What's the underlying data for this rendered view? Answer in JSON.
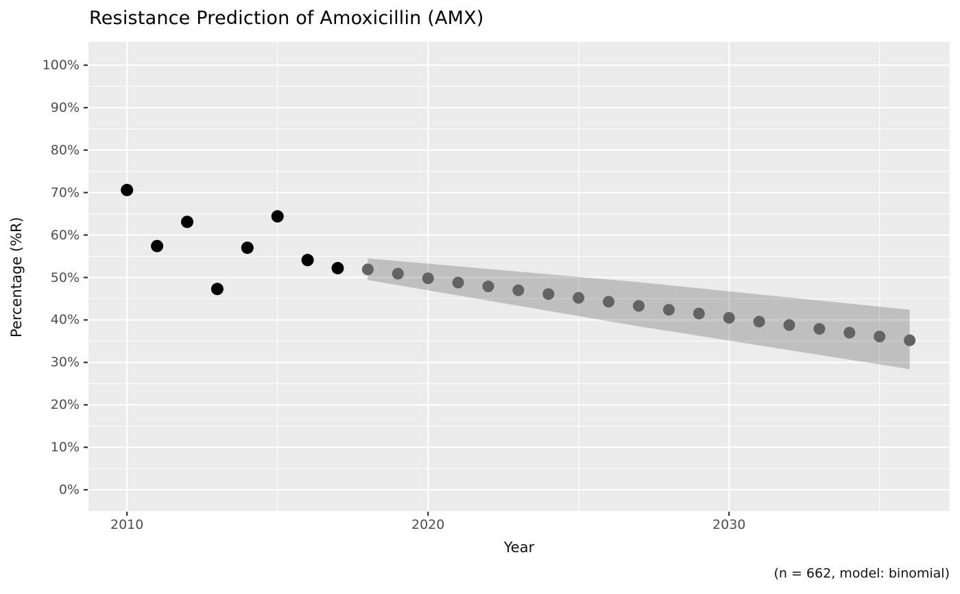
{
  "title": "Resistance Prediction of Amoxicillin (AMX)",
  "caption": "(n = 662, model: binomial)",
  "colors": {
    "panel_background": "#ebebeb",
    "grid_major": "#ffffff",
    "grid_minor": "#ffffff",
    "axis_tick": "#333333",
    "tick_label": "#4d4d4d",
    "observed_point": "#000000",
    "predicted_point": "#636363",
    "ribbon_fill": "rgba(50,50,50,0.235)"
  },
  "chart_data": {
    "type": "scatter",
    "title": "Resistance Prediction of Amoxicillin (AMX)",
    "xlabel": "Year",
    "ylabel": "Percentage (%R)",
    "caption": "(n = 662, model: binomial)",
    "xlim": [
      2008.72,
      2037.33
    ],
    "ylim": [
      -5.0,
      105.5
    ],
    "grid": true,
    "legend_position": "none",
    "x_ticks": [
      {
        "v": 2010,
        "label": "2010"
      },
      {
        "v": 2020,
        "label": "2020"
      },
      {
        "v": 2030,
        "label": "2030"
      }
    ],
    "x_minor_ticks": [
      2015,
      2025,
      2035
    ],
    "y_ticks": [
      {
        "v": 0,
        "label": "0%"
      },
      {
        "v": 10,
        "label": "10%"
      },
      {
        "v": 20,
        "label": "20%"
      },
      {
        "v": 30,
        "label": "30%"
      },
      {
        "v": 40,
        "label": "40%"
      },
      {
        "v": 50,
        "label": "50%"
      },
      {
        "v": 60,
        "label": "60%"
      },
      {
        "v": 70,
        "label": "70%"
      },
      {
        "v": 80,
        "label": "80%"
      },
      {
        "v": 90,
        "label": "90%"
      },
      {
        "v": 100,
        "label": "100%"
      }
    ],
    "y_minor_ticks": [
      5,
      15,
      25,
      35,
      45,
      55,
      65,
      75,
      85,
      95
    ],
    "series": [
      {
        "name": "observed",
        "marker_radius": 9,
        "x": [
          2010,
          2011,
          2012,
          2013,
          2014,
          2015,
          2016,
          2017
        ],
        "y": [
          70.6,
          57.4,
          63.1,
          47.3,
          57.0,
          64.4,
          54.1,
          52.2
        ]
      },
      {
        "name": "predicted",
        "marker_radius": 8.5,
        "x": [
          2018,
          2019,
          2020,
          2021,
          2022,
          2023,
          2024,
          2025,
          2026,
          2027,
          2028,
          2029,
          2030,
          2031,
          2032,
          2033,
          2034,
          2035,
          2036
        ],
        "y": [
          51.9,
          50.9,
          49.8,
          48.8,
          47.9,
          47.0,
          46.1,
          45.2,
          44.3,
          43.3,
          42.4,
          41.5,
          40.5,
          39.6,
          38.8,
          37.9,
          37.0,
          36.1,
          35.2
        ]
      }
    ],
    "confidence_ribbon": {
      "x": [
        2018,
        2027,
        2036
      ],
      "upper": [
        54.5,
        48.9,
        42.4
      ],
      "lower": [
        49.4,
        38.5,
        28.4
      ]
    }
  }
}
